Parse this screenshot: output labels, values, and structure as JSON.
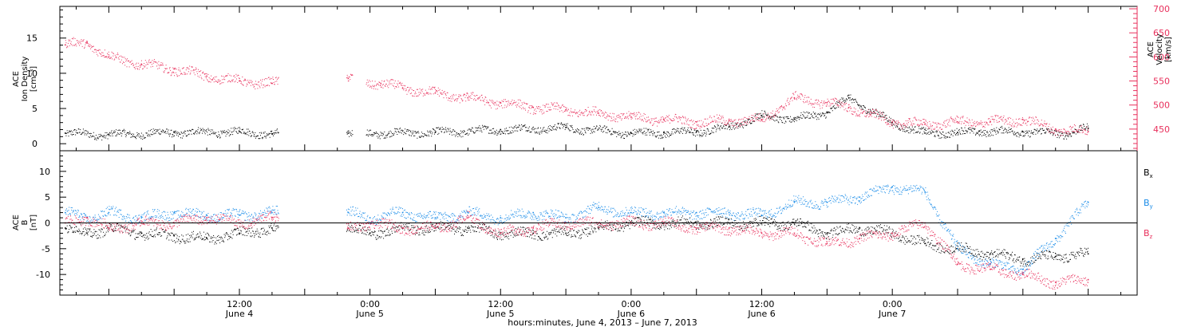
{
  "chart_data": [
    {
      "type": "scatter",
      "panel": "plasma",
      "ylabel_left": [
        "ACE",
        "Ion Density",
        "[cm⁻³]"
      ],
      "ylabel_right": [
        "ACE",
        "Velocity",
        "[km/s]"
      ],
      "ylim_left": [
        -1,
        19.5
      ],
      "ylim_right": [
        405,
        705
      ],
      "yticks_left": [
        0,
        5,
        10,
        15
      ],
      "yticks_right": [
        450,
        500,
        550,
        600,
        650,
        700
      ],
      "xlim_hours": [
        -4.5,
        94.5
      ],
      "data_gaps_hours": [
        [
          15.6,
          21.8
        ],
        [
          22.4,
          23.6
        ]
      ],
      "series": [
        {
          "name": "",
          "axis": "left",
          "color": "#000000",
          "x": [
            -4,
            0,
            6,
            12,
            15,
            22,
            30,
            36,
            42,
            48,
            51,
            54,
            57,
            60,
            63,
            66,
            68,
            72,
            75,
            78,
            80,
            84,
            88,
            90
          ],
          "y": [
            1.5,
            1.3,
            1.6,
            1.7,
            1.4,
            1.5,
            1.6,
            2.0,
            2.3,
            1.5,
            1.6,
            1.7,
            2.4,
            4.0,
            3.5,
            4.5,
            6.5,
            3.0,
            1.5,
            1.6,
            1.8,
            1.7,
            1.5,
            2.2
          ]
        },
        {
          "name": "",
          "axis": "right",
          "color": "#e8305c",
          "x": [
            -4,
            -2,
            0,
            3,
            6,
            9,
            12,
            15,
            22,
            23,
            25,
            27,
            30,
            33,
            36,
            39,
            42,
            45,
            48,
            51,
            54,
            57,
            60,
            63,
            66,
            68,
            70,
            72,
            75,
            78,
            81,
            84,
            87,
            90
          ],
          "y": [
            625,
            630,
            600,
            585,
            575,
            560,
            550,
            545,
            555,
            550,
            545,
            535,
            525,
            515,
            505,
            495,
            490,
            483,
            475,
            470,
            465,
            467,
            470,
            515,
            505,
            495,
            480,
            465,
            460,
            465,
            465,
            470,
            450,
            445
          ]
        }
      ]
    },
    {
      "type": "scatter",
      "panel": "magnetic-field",
      "ylabel": [
        "ACE",
        "B",
        "[nT]"
      ],
      "ylim": [
        -14,
        14
      ],
      "yticks": [
        -10,
        -5,
        0,
        5,
        10
      ],
      "zero_line": true,
      "xlim_hours": [
        -4.5,
        94.5
      ],
      "data_gaps_hours": [
        [
          15.6,
          21.8
        ]
      ],
      "series": [
        {
          "name": "B",
          "subscript": "x",
          "color": "#000000",
          "x": [
            -4,
            -2,
            0,
            3,
            6,
            9,
            12,
            15,
            22,
            24,
            27,
            30,
            33,
            36,
            39,
            42,
            45,
            48,
            51,
            54,
            57,
            60,
            63,
            66,
            69,
            72,
            75,
            78,
            81,
            84,
            87,
            90
          ],
          "y": [
            -1,
            -2,
            -1,
            -2,
            -2.5,
            -3,
            -2,
            -1,
            -1,
            -2,
            -1,
            -1,
            -1,
            -2,
            -2,
            -2,
            -1,
            0,
            0,
            0,
            0,
            0,
            0,
            -2,
            -1,
            -2,
            -4,
            -5,
            -6,
            -7,
            -6.5,
            -6
          ]
        },
        {
          "name": "B",
          "subscript": "y",
          "color": "#1a8ce8",
          "x": [
            -4,
            -2,
            0,
            3,
            6,
            9,
            12,
            15,
            22,
            24,
            27,
            30,
            33,
            36,
            39,
            42,
            45,
            48,
            51,
            54,
            57,
            60,
            63,
            66,
            69,
            72,
            75,
            78,
            81,
            84,
            87,
            90
          ],
          "y": [
            2,
            1,
            2,
            1,
            2,
            1.5,
            1.5,
            2,
            2,
            1,
            2,
            1,
            2,
            1,
            2,
            1,
            3,
            2,
            2,
            2,
            2,
            1.5,
            4,
            4,
            5,
            7,
            6,
            -5,
            -8,
            -9,
            -3,
            4
          ]
        },
        {
          "name": "B",
          "subscript": "z",
          "color": "#e8305c",
          "x": [
            -4,
            -2,
            0,
            3,
            6,
            9,
            12,
            15,
            22,
            24,
            27,
            30,
            33,
            36,
            39,
            42,
            45,
            48,
            51,
            54,
            57,
            60,
            63,
            66,
            69,
            72,
            75,
            78,
            81,
            84,
            87,
            90
          ],
          "y": [
            0,
            1,
            -1,
            0,
            0,
            1,
            0,
            1,
            -1,
            0,
            -1,
            -1,
            1,
            -2,
            -1,
            0,
            0,
            0,
            0,
            -1,
            -1,
            -2,
            -2,
            -4,
            -3,
            -2,
            0,
            -8,
            -9,
            -10,
            -11.5,
            -11
          ]
        }
      ]
    }
  ],
  "x_axis": {
    "tick_labels": [
      {
        "hour": 12,
        "time": "12:00",
        "date": "June 4"
      },
      {
        "hour": 24,
        "time": "0:00",
        "date": "June 5"
      },
      {
        "hour": 36,
        "time": "12:00",
        "date": "June 5"
      },
      {
        "hour": 48,
        "time": "0:00",
        "date": "June 6"
      },
      {
        "hour": 60,
        "time": "12:00",
        "date": "June 6"
      },
      {
        "hour": 72,
        "time": "0:00",
        "date": "June 7"
      }
    ],
    "minor_tick_every_hours": 3,
    "major_tick_every_hours": 6,
    "title": "hours:minutes, June  4, 2013 – June  7, 2013"
  },
  "colors": {
    "density": "#000000",
    "velocity": "#e8305c",
    "bx": "#000000",
    "by": "#1a8ce8",
    "bz": "#e8305c",
    "right_axis": "#e8305c"
  }
}
